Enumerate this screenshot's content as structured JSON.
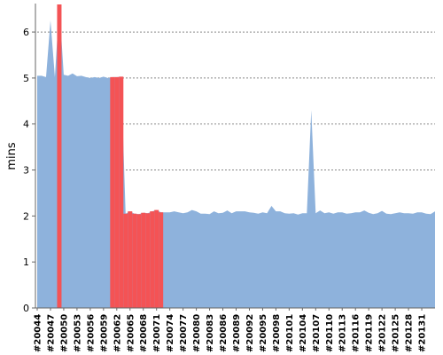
{
  "chart_data": {
    "type": "area",
    "ylabel": "mins",
    "ylim": [
      0,
      6.6
    ],
    "yticks": [
      "0",
      "1",
      "2",
      "3",
      "4",
      "5",
      "6"
    ],
    "grid": "horizontal dotted",
    "x_start_build": 20044,
    "x_tick_labels": [
      "#20044",
      "#20047",
      "#20050",
      "#20053",
      "#20056",
      "#20059",
      "#20062",
      "#20065",
      "#20068",
      "#20071",
      "#20074",
      "#20077",
      "#20080",
      "#20083",
      "#20086",
      "#20089",
      "#20092",
      "#20095",
      "#20098",
      "#20101",
      "#20104",
      "#20107",
      "#20110",
      "#20113",
      "#20116",
      "#20119",
      "#20122",
      "#20125",
      "#20128",
      "#20131"
    ],
    "values": [
      5.05,
      5.05,
      5.02,
      6.25,
      5.02,
      6.6,
      5.07,
      5.05,
      5.1,
      5.04,
      5.05,
      5.02,
      5.0,
      5.02,
      5.0,
      5.03,
      5.0,
      5.02,
      5.02,
      5.03,
      2.05,
      2.1,
      2.05,
      2.04,
      2.07,
      2.06,
      2.1,
      2.13,
      2.08,
      2.08,
      2.08,
      2.1,
      2.08,
      2.06,
      2.08,
      2.13,
      2.1,
      2.05,
      2.05,
      2.04,
      2.1,
      2.06,
      2.07,
      2.12,
      2.06,
      2.1,
      2.1,
      2.1,
      2.08,
      2.07,
      2.05,
      2.08,
      2.06,
      2.22,
      2.1,
      2.1,
      2.06,
      2.05,
      2.06,
      2.03,
      2.06,
      2.06,
      4.3,
      2.06,
      2.12,
      2.06,
      2.08,
      2.05,
      2.08,
      2.08,
      2.05,
      2.06,
      2.08,
      2.08,
      2.12,
      2.07,
      2.04,
      2.06,
      2.11,
      2.05,
      2.04,
      2.06,
      2.08,
      2.06,
      2.06,
      2.05,
      2.08,
      2.08,
      2.05,
      2.04,
      2.1
    ],
    "failed_ranges": [
      [
        5,
        5
      ],
      [
        17,
        17
      ],
      [
        18,
        18
      ],
      [
        19,
        19
      ],
      [
        20,
        20
      ],
      [
        21,
        21
      ],
      [
        22,
        22
      ],
      [
        23,
        23
      ],
      [
        24,
        24
      ],
      [
        25,
        25
      ],
      [
        26,
        26
      ],
      [
        27,
        27
      ],
      [
        28,
        28
      ]
    ],
    "colors": {
      "success": "#8eb2dc",
      "failed": "#f45355",
      "grid": "#888888"
    }
  }
}
